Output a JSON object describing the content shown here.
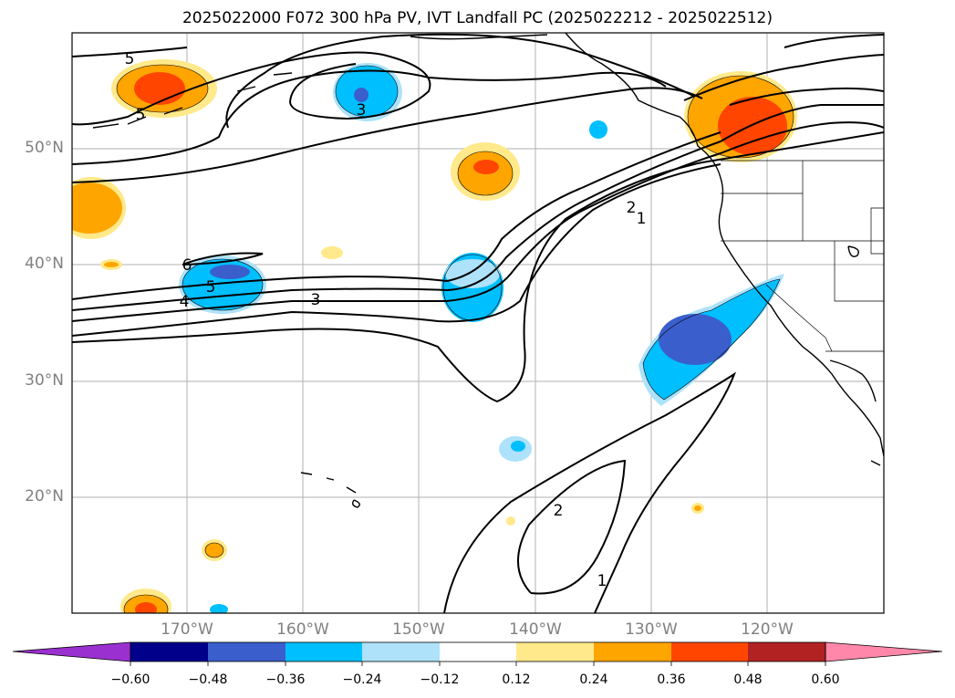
{
  "title": "2025022000 F072 300 hPa PV, IVT Landfall PC (2025022212 - 2025022512)",
  "map": {
    "lat_ticks": [
      "50°N",
      "40°N",
      "30°N",
      "20°N"
    ],
    "lon_ticks": [
      "170°W",
      "160°W",
      "150°W",
      "140°W",
      "130°W",
      "120°W"
    ],
    "contour_labels": [
      "5",
      "5",
      "3",
      "6",
      "5",
      "4",
      "3",
      "2",
      "1",
      "2",
      "1"
    ]
  },
  "colorbar": {
    "tick_labels": [
      "−0.60",
      "−0.48",
      "−0.36",
      "−0.24",
      "−0.12",
      "0.12",
      "0.24",
      "0.36",
      "0.48",
      "0.60"
    ],
    "colors": [
      "#9b30d0",
      "#00008b",
      "#3a5fcd",
      "#00bfff",
      "#ade2fa",
      "#ffffff",
      "#ffe98a",
      "#ffa500",
      "#ff4500",
      "#b22222",
      "#ff88aa"
    ]
  }
}
